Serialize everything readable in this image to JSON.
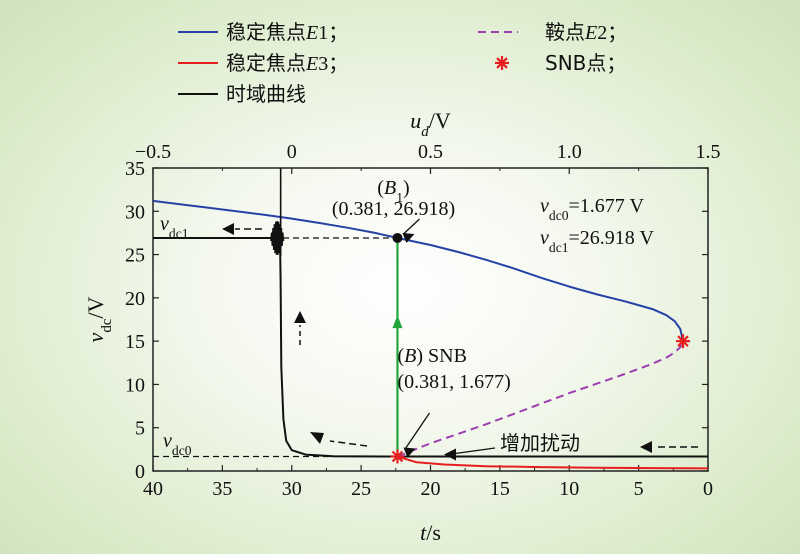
{
  "chart_data": {
    "type": "line",
    "axes": {
      "x_bottom": {
        "label": "t/s",
        "label_var": "t",
        "label_unit": "/s",
        "range": [
          40,
          0
        ],
        "reversed": true,
        "ticks": [
          "40",
          "35",
          "30",
          "25",
          "20",
          "15",
          "10",
          "5",
          "0"
        ]
      },
      "x_top": {
        "label": "u_d/V",
        "label_var": "u",
        "label_sub": "d",
        "label_unit": "/V",
        "range": [
          -0.5,
          1.5
        ],
        "ticks": [
          "−0.5",
          "0",
          "0.5",
          "1.0",
          "1.5"
        ]
      },
      "y": {
        "label": "v_dc/V",
        "label_var": "v",
        "label_sub": "dc",
        "label_unit": "/V",
        "range": [
          0,
          35
        ],
        "ticks": [
          "0",
          "5",
          "10",
          "15",
          "20",
          "25",
          "30",
          "35"
        ]
      }
    },
    "legend": {
      "placement": "top",
      "entries": [
        {
          "label": "稳定焦点E1；",
          "prefix": "稳定焦点",
          "var": "E",
          "suffix": "1；",
          "color": "#2642a6",
          "style": "solid"
        },
        {
          "label": "鞍点E2；",
          "prefix": "鞍点",
          "var": "E",
          "suffix": "2；",
          "color": "#9b3fb0",
          "style": "dashed"
        },
        {
          "label": "稳定焦点E3；",
          "prefix": "稳定焦点",
          "var": "E",
          "suffix": "3；",
          "color": "#e61e1e",
          "style": "solid"
        },
        {
          "label": "SNB点；",
          "color": "#e61e1e",
          "style": "marker-star"
        },
        {
          "label": "时域曲线",
          "color": "#111111",
          "style": "solid"
        }
      ]
    },
    "series": [
      {
        "name": "稳定焦点E1；",
        "axis": "u_d",
        "x": [
          -0.5,
          -0.4,
          -0.3,
          -0.2,
          -0.1,
          0,
          0.1,
          0.2,
          0.3,
          0.381,
          0.5,
          0.6,
          0.7,
          0.8,
          0.9,
          1.0,
          1.1,
          1.2,
          1.3,
          1.35,
          1.38,
          1.4,
          1.41
        ],
        "y": [
          31.2,
          30.8,
          30.4,
          30.0,
          29.6,
          29.15,
          28.65,
          28.1,
          27.5,
          26.918,
          26.1,
          25.3,
          24.4,
          23.4,
          22.3,
          21.3,
          20.4,
          19.6,
          18.7,
          18.0,
          17.3,
          16.4,
          15.0
        ]
      },
      {
        "name": "鞍点E2；",
        "axis": "u_d",
        "x": [
          0.381,
          0.5,
          0.6,
          0.7,
          0.8,
          0.9,
          1.0,
          1.1,
          1.2,
          1.3,
          1.35,
          1.38,
          1.4,
          1.41
        ],
        "y": [
          1.677,
          3.2,
          4.3,
          5.4,
          6.6,
          7.8,
          9.0,
          10.1,
          11.2,
          12.4,
          13.1,
          13.7,
          14.3,
          15.0
        ]
      },
      {
        "name": "稳定焦点E3；",
        "axis": "u_d",
        "x": [
          0.381,
          0.45,
          0.55,
          0.7,
          0.9,
          1.1,
          1.3,
          1.5
        ],
        "y": [
          1.677,
          1.0,
          0.75,
          0.55,
          0.45,
          0.38,
          0.33,
          0.3
        ]
      },
      {
        "name": "时域曲线",
        "axis": "t",
        "x": [
          0,
          22.3,
          27,
          29,
          30,
          30.4,
          30.6,
          30.75,
          30.8,
          30.85,
          31,
          31.5,
          40
        ],
        "y": [
          1.677,
          1.677,
          1.7,
          1.9,
          2.4,
          3.5,
          6,
          12,
          22,
          26.918,
          26.918,
          26.918,
          26.918
        ]
      }
    ],
    "points": [
      {
        "name": "SNB点；",
        "x": 1.41,
        "y": 15.0
      },
      {
        "name": "(B) SNB",
        "x": 0.381,
        "y": 1.677
      },
      {
        "name": "(B1)",
        "x": 0.381,
        "y": 26.918
      }
    ],
    "annotations": {
      "b1_label": "(B1)",
      "b1_open": "(",
      "b1_var": "B",
      "b1_sub": "1",
      "b1_close": ")",
      "b1_coords": "(0.381, 26.918)",
      "b_label_open": "(",
      "b_label_var": "B",
      "b_label_close": ") SNB",
      "b_coords": "(0.381, 1.677)",
      "disturb": "增加扰动",
      "vdc1_var": "v",
      "vdc1_sub": "dc1",
      "vdc0_var": "v",
      "vdc0_sub": "dc0",
      "vdc0_value": "=1.677 V",
      "vdc1_value": "=26.918 V"
    },
    "colors": {
      "e1": "#2642a6",
      "e2": "#9b3fb0",
      "e3": "#e61e1e",
      "time": "#111111",
      "green": "#22a63a",
      "frame": "#222222"
    }
  }
}
